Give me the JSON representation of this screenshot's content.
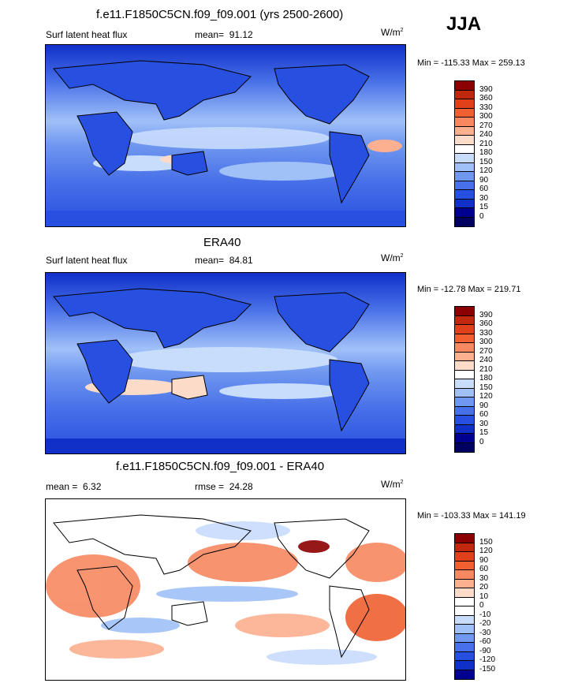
{
  "season": "JJA",
  "units_base": "W/m",
  "units_exp": "2",
  "panels": [
    {
      "title": "f.e11.F1850C5CN.f09_f09.001 (yrs 2500-2600)",
      "left_label": "Surf latent heat flux",
      "stat_label": "mean=",
      "stat_value": "91.12",
      "minmax": "Min = -115.33 Max = 259.13",
      "colorbar_labels": [
        "390",
        "360",
        "330",
        "300",
        "270",
        "240",
        "210",
        "180",
        "150",
        "120",
        "90",
        "60",
        "30",
        "15",
        "0"
      ]
    },
    {
      "title": "ERA40",
      "left_label": "Surf latent heat flux",
      "stat_label": "mean=",
      "stat_value": "84.81",
      "minmax": "Min = -12.78 Max = 219.71",
      "colorbar_labels": [
        "390",
        "360",
        "330",
        "300",
        "270",
        "240",
        "210",
        "180",
        "150",
        "120",
        "90",
        "60",
        "30",
        "15",
        "0"
      ]
    },
    {
      "title": "f.e11.F1850C5CN.f09_f09.001 - ERA40",
      "left_label": "mean =",
      "left_value": "6.32",
      "stat_label": "rmse =",
      "stat_value": "24.28",
      "minmax": "Min = -103.33 Max = 141.19",
      "colorbar_labels": [
        "150",
        "120",
        "90",
        "60",
        "30",
        "20",
        "10",
        "0",
        "-10",
        "-20",
        "-30",
        "-60",
        "-90",
        "-120",
        "-150"
      ]
    }
  ],
  "colors": {
    "abs_scale": [
      "#8b0000",
      "#c0280e",
      "#e0401a",
      "#f06030",
      "#f88860",
      "#fcb090",
      "#fcdcc8",
      "#ffffff",
      "#c8dcfc",
      "#a0c0f8",
      "#7098f0",
      "#4870e8",
      "#2850e0",
      "#1030c8",
      "#000090",
      "#000060"
    ],
    "diff_scale": [
      "#8b0000",
      "#c0280e",
      "#e0401a",
      "#f06030",
      "#f88860",
      "#fcb090",
      "#fcdcc8",
      "#ffffff",
      "#ffffff",
      "#c8dcfc",
      "#a0c0f8",
      "#7098f0",
      "#4870e8",
      "#2850e0",
      "#1030c8",
      "#000090"
    ]
  },
  "chart_data": [
    {
      "type": "heatmap",
      "title": "f.e11.F1850C5CN.f09_f09.001 (yrs 2500-2600)",
      "variable": "Surf latent heat flux",
      "units": "W/m2",
      "season": "JJA",
      "mean": 91.12,
      "min": -115.33,
      "max": 259.13,
      "levels": [
        0,
        15,
        30,
        60,
        90,
        120,
        150,
        180,
        210,
        240,
        270,
        300,
        330,
        360,
        390
      ]
    },
    {
      "type": "heatmap",
      "title": "ERA40",
      "variable": "Surf latent heat flux",
      "units": "W/m2",
      "season": "JJA",
      "mean": 84.81,
      "min": -12.78,
      "max": 219.71,
      "levels": [
        0,
        15,
        30,
        60,
        90,
        120,
        150,
        180,
        210,
        240,
        270,
        300,
        330,
        360,
        390
      ]
    },
    {
      "type": "heatmap",
      "title": "f.e11.F1850C5CN.f09_f09.001 - ERA40",
      "units": "W/m2",
      "season": "JJA",
      "mean": 6.32,
      "rmse": 24.28,
      "min": -103.33,
      "max": 141.19,
      "levels": [
        -150,
        -120,
        -90,
        -60,
        -30,
        -20,
        -10,
        0,
        10,
        20,
        30,
        60,
        90,
        120,
        150
      ]
    }
  ]
}
